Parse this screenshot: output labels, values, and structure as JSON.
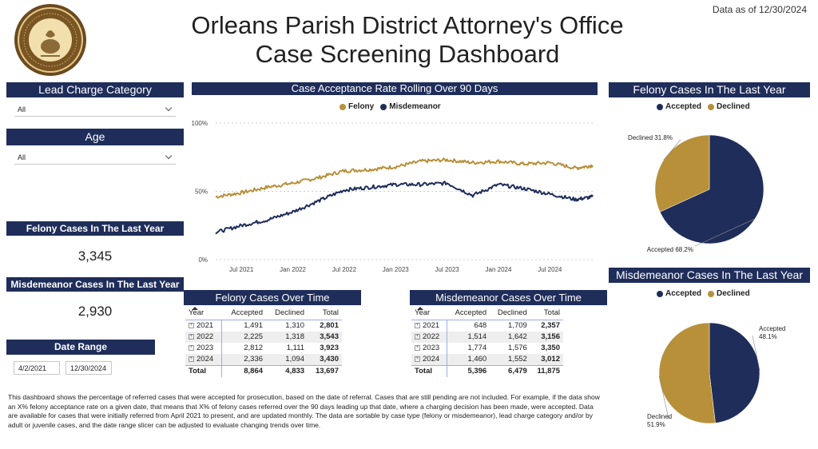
{
  "header": {
    "title_line1": "Orleans Parish District Attorney's Office",
    "title_line2": "Case Screening Dashboard",
    "data_as_of": "Data as of 12/30/2024",
    "seal_text": "ORLEANS PARISH DISTRICT ATTORNEY JASON ROGERS WILLIAMS"
  },
  "filters": {
    "lead_charge": {
      "label": "Lead Charge Category",
      "value": "All"
    },
    "age": {
      "label": "Age",
      "value": "All"
    },
    "date_range": {
      "label": "Date Range",
      "start": "4/2/2021",
      "end": "12/30/2024"
    }
  },
  "kpis": {
    "felony": {
      "label": "Felony Cases In The Last Year",
      "value": "3,345"
    },
    "misdemeanor": {
      "label": "Misdemeanor Cases In The Last Year",
      "value": "2,930"
    }
  },
  "line_chart": {
    "title": "Case Acceptance Rate Rolling Over 90 Days",
    "legend": [
      {
        "name": "Felony",
        "color": "#b8903a"
      },
      {
        "name": "Misdemeanor",
        "color": "#1f2d5a"
      }
    ],
    "y_ticks": [
      "100%",
      "50%",
      "0%"
    ],
    "x_ticks": [
      "Jul 2021",
      "Jan 2022",
      "Jul 2022",
      "Jan 2023",
      "Jul 2023",
      "Jan 2024",
      "Jul 2024"
    ]
  },
  "chart_data": [
    {
      "type": "line",
      "title": "Case Acceptance Rate Rolling Over 90 Days",
      "x": [
        "2021-04",
        "2021-07",
        "2021-10",
        "2022-01",
        "2022-04",
        "2022-07",
        "2022-10",
        "2023-01",
        "2023-04",
        "2023-07",
        "2023-10",
        "2024-01",
        "2024-04",
        "2024-07",
        "2024-10",
        "2024-12"
      ],
      "series": [
        {
          "name": "Felony",
          "values": [
            46,
            49,
            53,
            56,
            60,
            65,
            66,
            68,
            72,
            73,
            71,
            72,
            70,
            71,
            67,
            69
          ]
        },
        {
          "name": "Misdemeanor",
          "values": [
            20,
            25,
            29,
            35,
            43,
            51,
            53,
            55,
            55,
            56,
            47,
            55,
            52,
            48,
            44,
            46
          ]
        }
      ],
      "ylim": [
        0,
        100
      ],
      "x_range": [
        "2021-04",
        "2024-12"
      ],
      "grid": true,
      "legend": "top"
    },
    {
      "type": "pie",
      "title": "Felony Cases In The Last Year",
      "categories": [
        "Accepted",
        "Declined"
      ],
      "values": [
        68.2,
        31.8
      ],
      "labels": [
        "Accepted 68.2%",
        "Declined 31.8%"
      ],
      "colors": [
        "#1f2d5a",
        "#b8903a"
      ],
      "legend": "top"
    },
    {
      "type": "pie",
      "title": "Misdemeanor Cases In The Last Year",
      "categories": [
        "Accepted",
        "Declined"
      ],
      "values": [
        48.1,
        51.9
      ],
      "labels": [
        "Accepted 48.1%",
        "Declined 51.9%"
      ],
      "colors": [
        "#1f2d5a",
        "#b8903a"
      ],
      "legend": "top"
    }
  ],
  "felony_table": {
    "title": "Felony Cases Over Time",
    "headers": [
      "Year",
      "Accepted",
      "Declined",
      "Total"
    ],
    "rows": [
      [
        "2021",
        "1,491",
        "1,310",
        "2,801"
      ],
      [
        "2022",
        "2,225",
        "1,318",
        "3,543"
      ],
      [
        "2023",
        "2,812",
        "1,111",
        "3,923"
      ],
      [
        "2024",
        "2,336",
        "1,094",
        "3,430"
      ]
    ],
    "total": [
      "Total",
      "8,864",
      "4,833",
      "13,697"
    ]
  },
  "misdemeanor_table": {
    "title": "Misdemeanor Cases Over Time",
    "headers": [
      "Year",
      "Accepted",
      "Declined",
      "Total"
    ],
    "rows": [
      [
        "2021",
        "648",
        "1,709",
        "2,357"
      ],
      [
        "2022",
        "1,514",
        "1,642",
        "3,156"
      ],
      [
        "2023",
        "1,774",
        "1,576",
        "3,350"
      ],
      [
        "2024",
        "1,460",
        "1,552",
        "3,012"
      ]
    ],
    "total": [
      "Total",
      "5,396",
      "6,479",
      "11,875"
    ]
  },
  "footer": {
    "text": "This dashboard shows the percentage of referred cases that were accepted for prosecution, based on the date of referral. Cases that are still pending are not included. For example, if the data show an X% felony acceptance rate on a given date, that means that X% of felony cases referred over the 90 days leading up that date, where a charging decision has been made, were accepted. Data are available for cases that were initially referred from April 2021 to present, and are updated monthly. The data are sortable by case type (felony or misdemeanor), lead charge category and/or by adult or juvenile cases, and the date range slicer can be adjusted to evaluate changing trends over time."
  },
  "colors": {
    "navy": "#1f2d5a",
    "gold": "#b8903a"
  }
}
